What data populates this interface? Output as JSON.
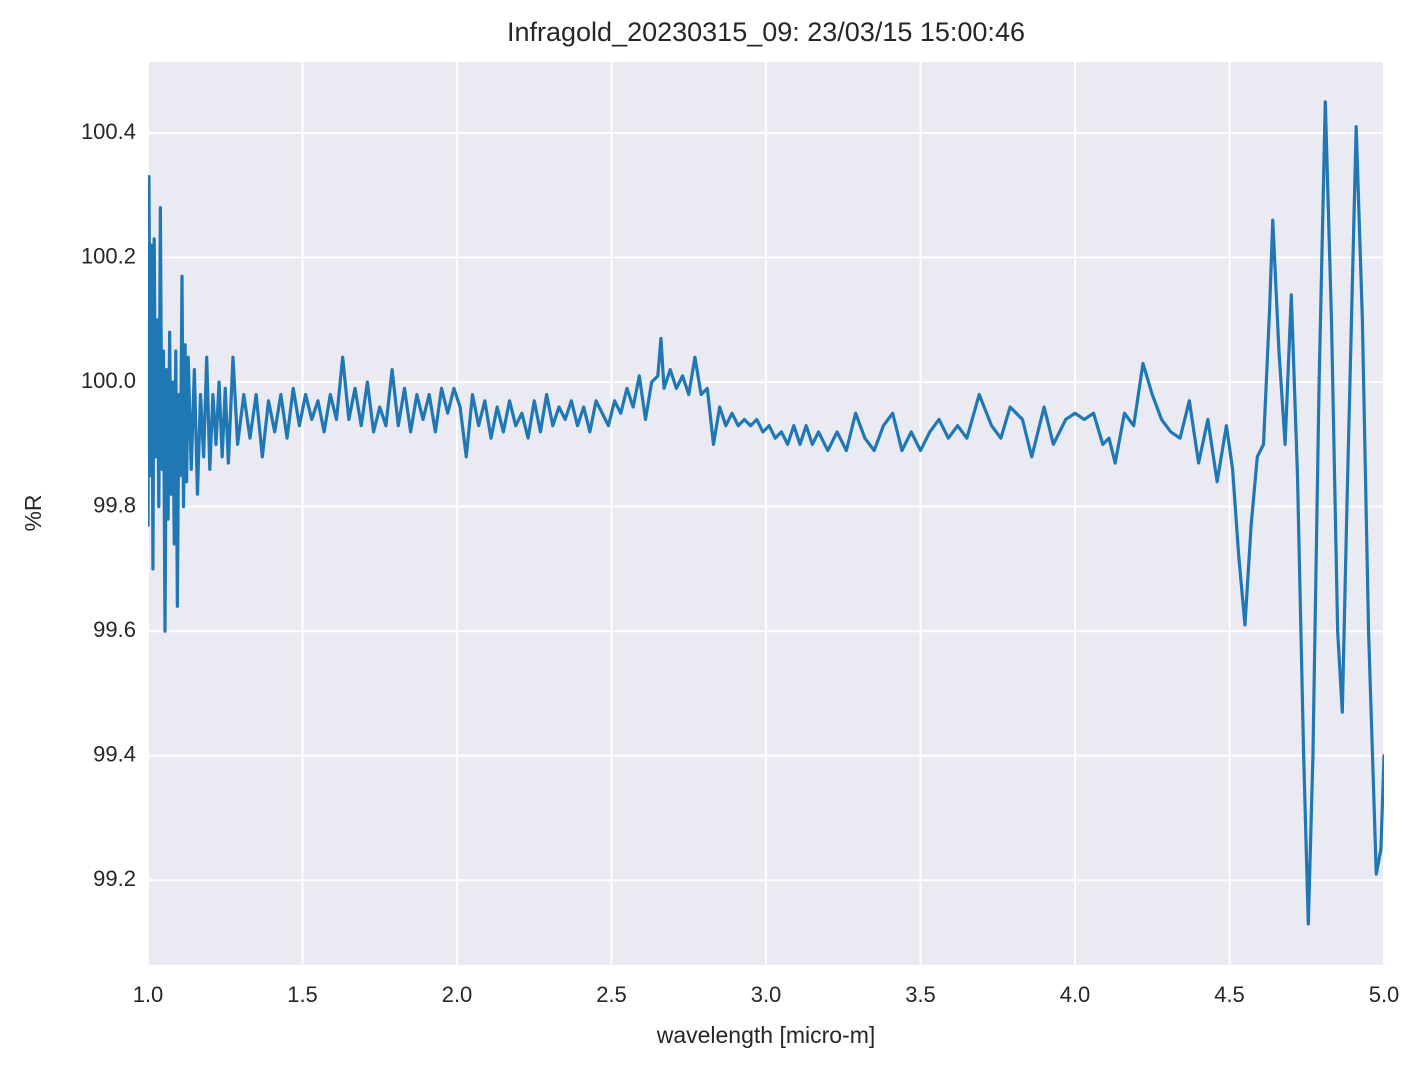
{
  "chart_data": {
    "type": "line",
    "title": "Infragold_20230315_09:  23/03/15 15:00:46",
    "xlabel": "wavelength [micro-m]",
    "ylabel": "%R",
    "color": "#1f77b4",
    "grid": true,
    "xlim": [
      1,
      5
    ],
    "ylim": [
      99.064,
      100.514
    ],
    "xticks": [
      {
        "value": 1,
        "label": "1.0"
      },
      1.5,
      {
        "value": 2,
        "label": "2.0"
      },
      2.5,
      {
        "value": 3,
        "label": "3.0"
      },
      3.5,
      {
        "value": 4,
        "label": "4.0"
      },
      4.5,
      {
        "value": 5,
        "label": "5.0"
      }
    ],
    "yticks": [
      99.2,
      99.4,
      99.6,
      99.8,
      {
        "value": 100,
        "label": "100.0"
      },
      100.2,
      100.4
    ],
    "x": [
      1.0,
      1.003,
      1.008,
      1.012,
      1.016,
      1.02,
      1.025,
      1.03,
      1.035,
      1.04,
      1.045,
      1.05,
      1.055,
      1.06,
      1.065,
      1.07,
      1.075,
      1.08,
      1.085,
      1.09,
      1.095,
      1.1,
      1.105,
      1.11,
      1.115,
      1.12,
      1.125,
      1.13,
      1.14,
      1.15,
      1.16,
      1.17,
      1.18,
      1.19,
      1.2,
      1.21,
      1.22,
      1.23,
      1.24,
      1.25,
      1.26,
      1.275,
      1.29,
      1.31,
      1.33,
      1.35,
      1.37,
      1.39,
      1.41,
      1.43,
      1.45,
      1.47,
      1.49,
      1.51,
      1.53,
      1.55,
      1.57,
      1.59,
      1.61,
      1.63,
      1.65,
      1.67,
      1.69,
      1.71,
      1.73,
      1.75,
      1.77,
      1.79,
      1.81,
      1.83,
      1.85,
      1.87,
      1.89,
      1.91,
      1.93,
      1.95,
      1.97,
      1.99,
      2.01,
      2.03,
      2.05,
      2.07,
      2.09,
      2.11,
      2.13,
      2.15,
      2.17,
      2.19,
      2.21,
      2.23,
      2.25,
      2.27,
      2.29,
      2.31,
      2.33,
      2.35,
      2.37,
      2.39,
      2.41,
      2.43,
      2.45,
      2.47,
      2.49,
      2.51,
      2.53,
      2.55,
      2.57,
      2.59,
      2.61,
      2.63,
      2.65,
      2.66,
      2.67,
      2.69,
      2.71,
      2.73,
      2.75,
      2.77,
      2.79,
      2.81,
      2.83,
      2.85,
      2.87,
      2.89,
      2.91,
      2.93,
      2.95,
      2.97,
      2.99,
      3.01,
      3.03,
      3.05,
      3.07,
      3.09,
      3.11,
      3.13,
      3.15,
      3.17,
      3.2,
      3.23,
      3.26,
      3.29,
      3.32,
      3.35,
      3.38,
      3.41,
      3.44,
      3.47,
      3.5,
      3.53,
      3.56,
      3.59,
      3.62,
      3.65,
      3.69,
      3.73,
      3.76,
      3.79,
      3.83,
      3.86,
      3.9,
      3.93,
      3.97,
      4.0,
      4.03,
      4.06,
      4.09,
      4.11,
      4.13,
      4.16,
      4.19,
      4.22,
      4.25,
      4.28,
      4.31,
      4.34,
      4.37,
      4.4,
      4.43,
      4.46,
      4.49,
      4.51,
      4.53,
      4.55,
      4.57,
      4.59,
      4.61,
      4.63,
      4.64,
      4.66,
      4.68,
      4.7,
      4.72,
      4.74,
      4.755,
      4.77,
      4.79,
      4.81,
      4.83,
      4.85,
      4.865,
      4.88,
      4.91,
      4.93,
      4.95,
      4.975,
      4.99,
      5.0
    ],
    "values": [
      99.77,
      100.33,
      99.85,
      100.22,
      99.7,
      100.23,
      99.88,
      100.1,
      99.8,
      100.28,
      99.86,
      100.05,
      99.6,
      100.02,
      99.78,
      100.08,
      99.82,
      100.0,
      99.74,
      100.05,
      99.64,
      99.98,
      99.85,
      100.17,
      99.8,
      100.06,
      99.84,
      100.04,
      99.86,
      100.02,
      99.82,
      99.98,
      99.88,
      100.04,
      99.86,
      99.98,
      99.9,
      100.0,
      99.88,
      99.99,
      99.87,
      100.04,
      99.9,
      99.98,
      99.91,
      99.98,
      99.88,
      99.97,
      99.92,
      99.98,
      99.91,
      99.99,
      99.93,
      99.98,
      99.94,
      99.97,
      99.92,
      99.98,
      99.94,
      100.04,
      99.94,
      99.99,
      99.93,
      100.0,
      99.92,
      99.96,
      99.93,
      100.02,
      99.93,
      99.99,
      99.92,
      99.98,
      99.94,
      99.98,
      99.92,
      99.99,
      99.95,
      99.99,
      99.96,
      99.88,
      99.98,
      99.93,
      99.97,
      99.91,
      99.96,
      99.92,
      99.97,
      99.93,
      99.95,
      99.91,
      99.97,
      99.92,
      99.98,
      99.93,
      99.96,
      99.94,
      99.97,
      99.93,
      99.96,
      99.92,
      99.97,
      99.95,
      99.93,
      99.97,
      99.95,
      99.99,
      99.96,
      100.01,
      99.94,
      100.0,
      100.01,
      100.07,
      99.99,
      100.02,
      99.99,
      100.01,
      99.98,
      100.04,
      99.98,
      99.99,
      99.9,
      99.96,
      99.93,
      99.95,
      99.93,
      99.94,
      99.93,
      99.94,
      99.92,
      99.93,
      99.91,
      99.92,
      99.9,
      99.93,
      99.9,
      99.93,
      99.9,
      99.92,
      99.89,
      99.92,
      99.89,
      99.95,
      99.91,
      99.89,
      99.93,
      99.95,
      99.89,
      99.92,
      99.89,
      99.92,
      99.94,
      99.91,
      99.93,
      99.91,
      99.98,
      99.93,
      99.91,
      99.96,
      99.94,
      99.88,
      99.96,
      99.9,
      99.94,
      99.95,
      99.94,
      99.95,
      99.9,
      99.91,
      99.87,
      99.95,
      99.93,
      100.03,
      99.98,
      99.94,
      99.92,
      99.91,
      99.97,
      99.87,
      99.94,
      99.84,
      99.93,
      99.86,
      99.72,
      99.61,
      99.77,
      99.88,
      99.9,
      100.12,
      100.26,
      100.05,
      99.9,
      100.14,
      99.85,
      99.4,
      99.13,
      99.4,
      100.0,
      100.45,
      100.1,
      99.6,
      99.47,
      99.8,
      100.41,
      100.1,
      99.6,
      99.21,
      99.25,
      99.4
    ]
  }
}
